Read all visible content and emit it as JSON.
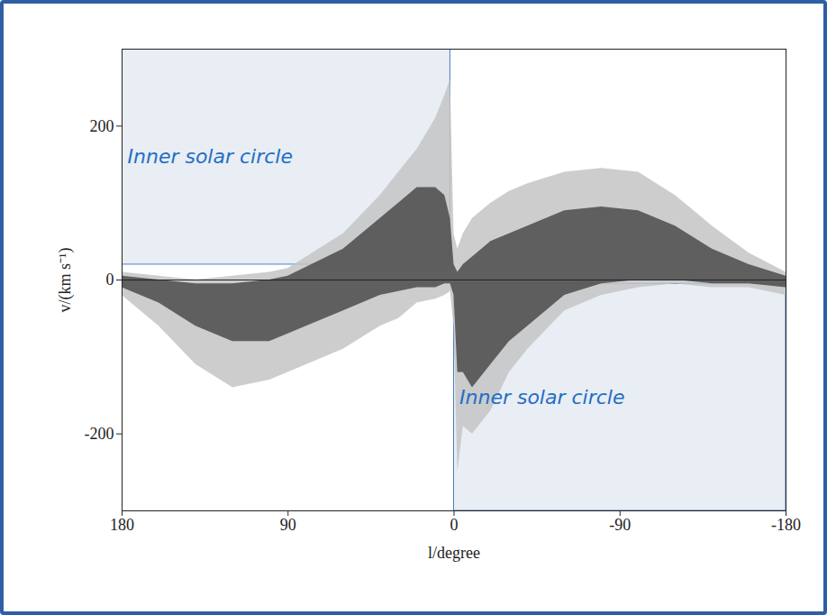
{
  "chart_data": {
    "type": "area",
    "x_label": "l/degree",
    "y_label": "v/(km s⁻¹)",
    "x": [
      180,
      160,
      140,
      120,
      100,
      90,
      60,
      40,
      30,
      20,
      10,
      5,
      2,
      0,
      -2,
      -5,
      -10,
      -20,
      -30,
      -40,
      -60,
      -80,
      -100,
      -120,
      -140,
      -160,
      -180
    ],
    "series": [
      {
        "color": "#c4c4c4",
        "upper": [
          10,
          5,
          0,
          5,
          10,
          15,
          60,
          110,
          140,
          170,
          210,
          240,
          260,
          60,
          40,
          60,
          80,
          100,
          115,
          125,
          140,
          145,
          140,
          110,
          70,
          35,
          10
        ],
        "lower": [
          -20,
          -60,
          -110,
          -140,
          -130,
          -120,
          -90,
          -60,
          -50,
          -30,
          -25,
          -20,
          -15,
          -60,
          -250,
          -190,
          -200,
          -170,
          -120,
          -90,
          -40,
          -20,
          -10,
          -5,
          -10,
          -10,
          -20
        ]
      },
      {
        "color": "#3a3a3a",
        "upper": [
          5,
          0,
          -5,
          -5,
          0,
          5,
          40,
          80,
          100,
          120,
          120,
          110,
          80,
          20,
          10,
          20,
          30,
          50,
          60,
          70,
          90,
          95,
          90,
          70,
          40,
          20,
          5
        ],
        "lower": [
          -10,
          -30,
          -60,
          -80,
          -80,
          -70,
          -40,
          -20,
          -15,
          -10,
          -10,
          -5,
          -5,
          -20,
          -120,
          -120,
          -140,
          -110,
          -80,
          -60,
          -20,
          -5,
          0,
          0,
          -5,
          -5,
          -10
        ]
      }
    ],
    "xlim": [
      180,
      -180
    ],
    "xticks": [
      180,
      90,
      0,
      -90,
      -180
    ],
    "ylim": [
      -300,
      300
    ],
    "yticks": [
      -200,
      0,
      200
    ],
    "regions": [
      {
        "label": "Inner solar circle",
        "xlim": [
          180,
          2
        ],
        "ylim": [
          20,
          300
        ],
        "color": "#e9edf4"
      },
      {
        "label": "Inner solar circle",
        "xlim": [
          0,
          -180
        ],
        "ylim": [
          -300,
          -5
        ],
        "color": "#e9edf4"
      }
    ]
  }
}
